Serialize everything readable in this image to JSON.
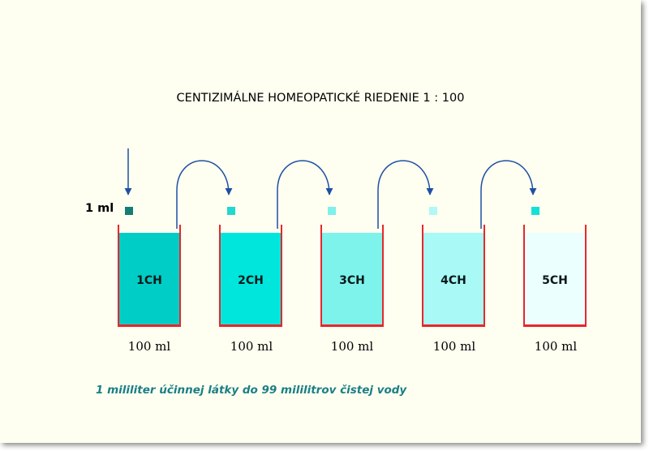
{
  "title": "CENTIZIMÁLNE HOMEOPATICKÉ RIEDENIE 1 :  100",
  "input_label": "1 ml",
  "beakers": [
    {
      "name": "1CH",
      "volume": "100 ml",
      "liquid_color": "#00cdc6",
      "drop_color": "#137d76"
    },
    {
      "name": "2CH",
      "volume": "100 ml",
      "liquid_color": "#00e6dc",
      "drop_color": "#20d9cf"
    },
    {
      "name": "3CH",
      "volume": "100 ml",
      "liquid_color": "#7ef3ec",
      "drop_color": "#7ff0ea"
    },
    {
      "name": "4CH",
      "volume": "100 ml",
      "liquid_color": "#a9faf6",
      "drop_color": "#b2f8f4"
    },
    {
      "name": "5CH",
      "volume": "100 ml",
      "liquid_color": "#ebfffe",
      "drop_color": "#15e0d6"
    }
  ],
  "caption": "1 mililiter účinnej látky do 99 mililitrov čistej vody",
  "colors": {
    "beaker_wall": "#e8262b",
    "arrow": "#1f4fa5",
    "caption": "#1a7f86",
    "background": "#fefff0"
  }
}
